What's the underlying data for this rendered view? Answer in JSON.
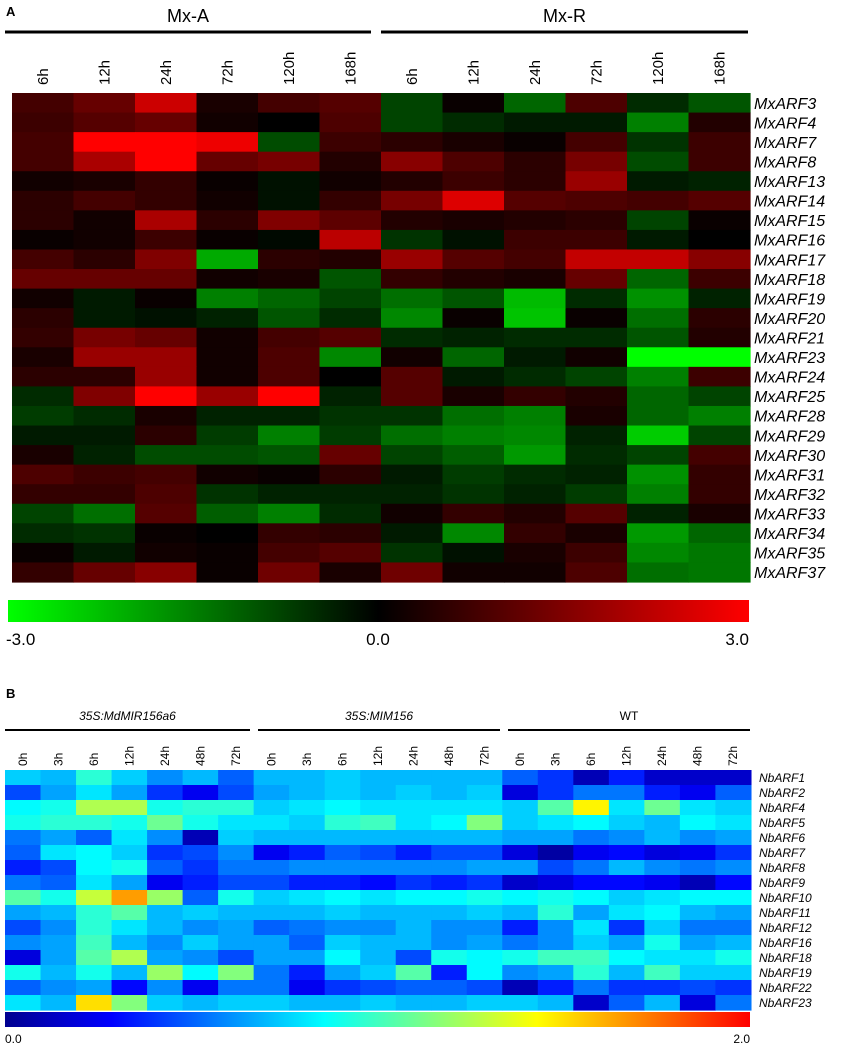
{
  "panel_a": {
    "letter": "A",
    "group_labels": [
      "Mx-A",
      "Mx-R"
    ],
    "colorbar": {
      "min_label": "-3.0",
      "mid_label": "0.0",
      "max_label": "3.0",
      "low_color": "#00ff00",
      "mid_color": "#000000",
      "high_color": "#ff0000"
    }
  },
  "panel_b": {
    "letter": "B",
    "group_labels": [
      "35S:MdMIR156a6",
      "35S:MIM156",
      "WT"
    ],
    "colorbar": {
      "min_label": "0.0",
      "max_label": "2.0",
      "stops": [
        "#00008f",
        "#0000ff",
        "#0080ff",
        "#00ffff",
        "#80ff80",
        "#ffff00",
        "#ff8000",
        "#ff0000"
      ]
    }
  },
  "chart_data": [
    {
      "type": "heatmap",
      "title": "",
      "groups": [
        "Mx-A",
        "Mx-R"
      ],
      "columns": [
        "6h",
        "12h",
        "24h",
        "72h",
        "120h",
        "168h",
        "6h",
        "12h",
        "24h",
        "72h",
        "120h",
        "168h"
      ],
      "rows": [
        "MxARF3",
        "MxARF4",
        "MxARF7",
        "MxARF8",
        "MxARF13",
        "MxARF14",
        "MxARF15",
        "MxARF16",
        "MxARF17",
        "MxARF18",
        "MxARF19",
        "MxARF20",
        "MxARF21",
        "MxARF23",
        "MxARF24",
        "MxARF25",
        "MxARF28",
        "MxARF29",
        "MxARF30",
        "MxARF31",
        "MxARF32",
        "MxARF33",
        "MxARF34",
        "MxARF35",
        "MxARF37"
      ],
      "scale": [
        -3.0,
        3.0
      ],
      "values": [
        [
          0.8,
          1.2,
          2.4,
          0.3,
          0.8,
          1.0,
          -0.8,
          0.1,
          -1.2,
          0.9,
          -0.5,
          -1.0
        ],
        [
          0.7,
          1.0,
          1.2,
          0.2,
          0.0,
          0.9,
          -0.8,
          -0.5,
          -0.3,
          -0.3,
          -1.5,
          0.4
        ],
        [
          0.8,
          3.0,
          3.0,
          2.8,
          -0.9,
          0.7,
          0.5,
          0.3,
          0.1,
          0.8,
          -0.6,
          0.7
        ],
        [
          0.8,
          2.0,
          3.0,
          1.2,
          1.4,
          0.4,
          1.6,
          0.9,
          0.5,
          1.4,
          -0.9,
          0.7
        ],
        [
          0.2,
          0.3,
          0.6,
          0.1,
          -0.2,
          0.2,
          0.4,
          0.7,
          0.5,
          1.8,
          -0.3,
          -0.4
        ],
        [
          0.5,
          0.8,
          0.6,
          0.2,
          -0.2,
          0.6,
          1.4,
          2.6,
          1.0,
          0.9,
          0.8,
          1.0
        ],
        [
          0.5,
          0.2,
          2.0,
          0.5,
          1.5,
          1.1,
          0.4,
          0.3,
          0.4,
          0.5,
          -0.8,
          0.1
        ],
        [
          0.1,
          0.2,
          0.7,
          0.1,
          -0.1,
          2.2,
          -0.6,
          -0.2,
          0.7,
          0.7,
          -0.3,
          0.0
        ],
        [
          0.8,
          0.5,
          1.5,
          -2.0,
          0.5,
          0.4,
          1.8,
          1.0,
          0.8,
          2.3,
          2.3,
          1.6
        ],
        [
          1.2,
          1.2,
          1.2,
          0.2,
          0.3,
          -1.0,
          0.6,
          0.4,
          0.3,
          1.2,
          -1.2,
          0.7
        ],
        [
          0.2,
          -0.3,
          0.1,
          -1.5,
          -1.2,
          -0.8,
          -1.3,
          -1.0,
          -2.2,
          -0.5,
          -1.7,
          -0.4
        ],
        [
          0.5,
          -0.3,
          -0.2,
          -0.4,
          -1.0,
          -0.5,
          -1.6,
          0.1,
          -2.3,
          0.1,
          -1.3,
          0.5
        ],
        [
          0.6,
          1.4,
          1.2,
          0.2,
          0.8,
          1.0,
          -0.5,
          -0.4,
          -0.5,
          -0.5,
          -1.0,
          0.4
        ],
        [
          0.3,
          1.8,
          1.8,
          0.2,
          0.9,
          -1.6,
          0.2,
          -1.2,
          -0.3,
          0.2,
          -3.0,
          -3.0
        ],
        [
          0.5,
          0.5,
          1.8,
          0.2,
          0.9,
          0.0,
          1.0,
          -0.3,
          -0.5,
          -0.8,
          -1.5,
          0.7
        ],
        [
          -0.5,
          1.5,
          3.0,
          1.8,
          3.0,
          -0.4,
          1.0,
          0.3,
          0.6,
          0.4,
          -1.2,
          -0.8
        ],
        [
          -0.7,
          -0.5,
          0.3,
          -0.4,
          -0.4,
          -0.6,
          -0.6,
          -1.3,
          -1.5,
          0.3,
          -1.2,
          -1.5
        ],
        [
          -0.3,
          -0.3,
          0.5,
          -0.7,
          -1.5,
          -0.7,
          -1.3,
          -1.5,
          -1.6,
          -0.4,
          -2.4,
          -0.8
        ],
        [
          0.3,
          -0.4,
          -0.9,
          -0.9,
          -1.0,
          1.2,
          -0.8,
          -1.1,
          -1.8,
          -0.5,
          -0.8,
          0.8
        ],
        [
          0.9,
          0.7,
          0.8,
          0.2,
          0.1,
          0.5,
          -0.3,
          -0.7,
          -0.5,
          -0.4,
          -1.7,
          0.6
        ],
        [
          0.6,
          0.6,
          0.9,
          -0.6,
          -0.4,
          -0.4,
          -0.4,
          -0.6,
          -0.4,
          -0.7,
          -1.5,
          0.6
        ],
        [
          -0.8,
          -1.3,
          1.0,
          -1.1,
          -1.5,
          -0.5,
          0.2,
          0.6,
          0.4,
          1.0,
          -0.4,
          0.3
        ],
        [
          -0.5,
          -0.6,
          0.1,
          0.0,
          0.6,
          0.5,
          -0.3,
          -1.6,
          0.6,
          0.3,
          -1.8,
          -1.2
        ],
        [
          0.1,
          -0.3,
          0.2,
          0.1,
          0.8,
          1.0,
          -0.6,
          -0.2,
          0.3,
          0.7,
          -1.6,
          -1.4
        ],
        [
          0.6,
          1.2,
          1.6,
          0.1,
          1.3,
          0.3,
          1.3,
          0.2,
          0.2,
          0.9,
          -1.3,
          -1.4
        ]
      ]
    },
    {
      "type": "heatmap",
      "title": "",
      "groups": [
        "35S:MdMIR156a6",
        "35S:MIM156",
        "WT"
      ],
      "columns": [
        "0h",
        "3h",
        "6h",
        "12h",
        "24h",
        "48h",
        "72h",
        "0h",
        "3h",
        "6h",
        "12h",
        "24h",
        "48h",
        "72h",
        "0h",
        "3h",
        "6h",
        "12h",
        "24h",
        "48h",
        "72h"
      ],
      "rows": [
        "NbARF1",
        "NbARF2",
        "NbARF4",
        "NbARF5",
        "NbARF6",
        "NbARF7",
        "NbARF8",
        "NbARF9",
        "NbARF10",
        "NbARF11",
        "NbARF12",
        "NbARF16",
        "NbARF18",
        "NbARF19",
        "NbARF22",
        "NbARF23"
      ],
      "scale": [
        0.0,
        2.0
      ],
      "values": [
        [
          0.75,
          0.7,
          0.95,
          0.75,
          0.6,
          0.7,
          0.5,
          0.7,
          0.7,
          0.75,
          0.7,
          0.7,
          0.7,
          0.7,
          0.5,
          0.4,
          0.1,
          0.35,
          0.15,
          0.15,
          0.15
        ],
        [
          0.45,
          0.65,
          0.8,
          0.65,
          0.4,
          0.25,
          0.45,
          0.65,
          0.7,
          0.75,
          0.7,
          0.75,
          0.7,
          0.75,
          0.2,
          0.4,
          0.55,
          0.55,
          0.35,
          0.25,
          0.5
        ],
        [
          0.85,
          0.9,
          1.25,
          1.25,
          0.9,
          0.95,
          0.95,
          0.75,
          0.8,
          0.85,
          0.8,
          0.8,
          0.8,
          0.8,
          0.75,
          1.05,
          1.45,
          0.8,
          1.1,
          0.8,
          0.75
        ],
        [
          0.9,
          0.95,
          0.95,
          0.9,
          1.1,
          0.9,
          0.8,
          0.8,
          0.75,
          0.95,
          1.0,
          0.8,
          0.85,
          1.15,
          0.75,
          0.8,
          0.85,
          0.75,
          0.7,
          0.85,
          0.8
        ],
        [
          0.55,
          0.65,
          0.5,
          0.8,
          0.6,
          0.1,
          0.75,
          0.7,
          0.7,
          0.7,
          0.7,
          0.7,
          0.7,
          0.7,
          0.65,
          0.65,
          0.55,
          0.6,
          0.7,
          0.6,
          0.65
        ],
        [
          0.5,
          0.8,
          0.85,
          0.75,
          0.4,
          0.45,
          0.6,
          0.25,
          0.35,
          0.5,
          0.45,
          0.35,
          0.45,
          0.45,
          0.2,
          0.05,
          0.25,
          0.3,
          0.2,
          0.25,
          0.4
        ],
        [
          0.35,
          0.45,
          0.85,
          0.9,
          0.5,
          0.4,
          0.55,
          0.55,
          0.6,
          0.6,
          0.6,
          0.6,
          0.6,
          0.65,
          0.65,
          0.45,
          0.55,
          0.7,
          0.6,
          0.55,
          0.6
        ],
        [
          0.55,
          0.5,
          0.8,
          0.65,
          0.25,
          0.35,
          0.45,
          0.45,
          0.35,
          0.35,
          0.3,
          0.4,
          0.35,
          0.4,
          0.15,
          0.2,
          0.3,
          0.3,
          0.25,
          0.1,
          0.3
        ],
        [
          1.05,
          0.9,
          1.3,
          1.65,
          1.2,
          0.5,
          0.9,
          0.75,
          0.8,
          0.85,
          0.8,
          0.85,
          0.85,
          0.9,
          0.85,
          0.9,
          0.85,
          0.75,
          0.8,
          0.85,
          0.85
        ],
        [
          0.65,
          0.7,
          0.95,
          1.05,
          0.7,
          0.75,
          0.7,
          0.7,
          0.7,
          0.75,
          0.7,
          0.7,
          0.7,
          0.75,
          0.7,
          0.95,
          0.65,
          0.8,
          0.85,
          0.7,
          0.65
        ],
        [
          0.45,
          0.6,
          0.95,
          0.8,
          0.7,
          0.6,
          0.65,
          0.5,
          0.55,
          0.6,
          0.6,
          0.7,
          0.6,
          0.6,
          0.35,
          0.6,
          0.8,
          0.4,
          0.75,
          0.55,
          0.55
        ],
        [
          0.6,
          0.65,
          1.0,
          0.7,
          0.6,
          0.75,
          0.65,
          0.65,
          0.5,
          0.75,
          0.7,
          0.7,
          0.6,
          0.65,
          0.55,
          0.6,
          0.75,
          0.65,
          0.9,
          0.65,
          0.7
        ],
        [
          0.2,
          0.65,
          1.05,
          1.25,
          0.65,
          0.6,
          0.45,
          0.65,
          0.65,
          0.85,
          0.7,
          0.45,
          0.9,
          0.85,
          0.9,
          1.0,
          1.0,
          0.85,
          0.8,
          0.8,
          0.9
        ],
        [
          0.9,
          0.7,
          0.9,
          0.7,
          1.2,
          0.85,
          1.15,
          0.55,
          0.35,
          0.65,
          0.75,
          1.05,
          0.35,
          0.85,
          0.6,
          0.65,
          0.95,
          0.7,
          1.0,
          0.75,
          0.75
        ],
        [
          0.5,
          0.6,
          0.65,
          0.3,
          0.6,
          0.25,
          0.55,
          0.55,
          0.25,
          0.4,
          0.45,
          0.5,
          0.5,
          0.45,
          0.1,
          0.35,
          0.55,
          0.4,
          0.4,
          0.45,
          0.4
        ],
        [
          0.8,
          0.7,
          1.5,
          1.15,
          0.75,
          0.7,
          0.75,
          0.75,
          0.7,
          0.7,
          0.75,
          0.7,
          0.7,
          0.75,
          0.75,
          0.7,
          0.15,
          0.5,
          0.7,
          0.2,
          0.55
        ]
      ]
    }
  ]
}
